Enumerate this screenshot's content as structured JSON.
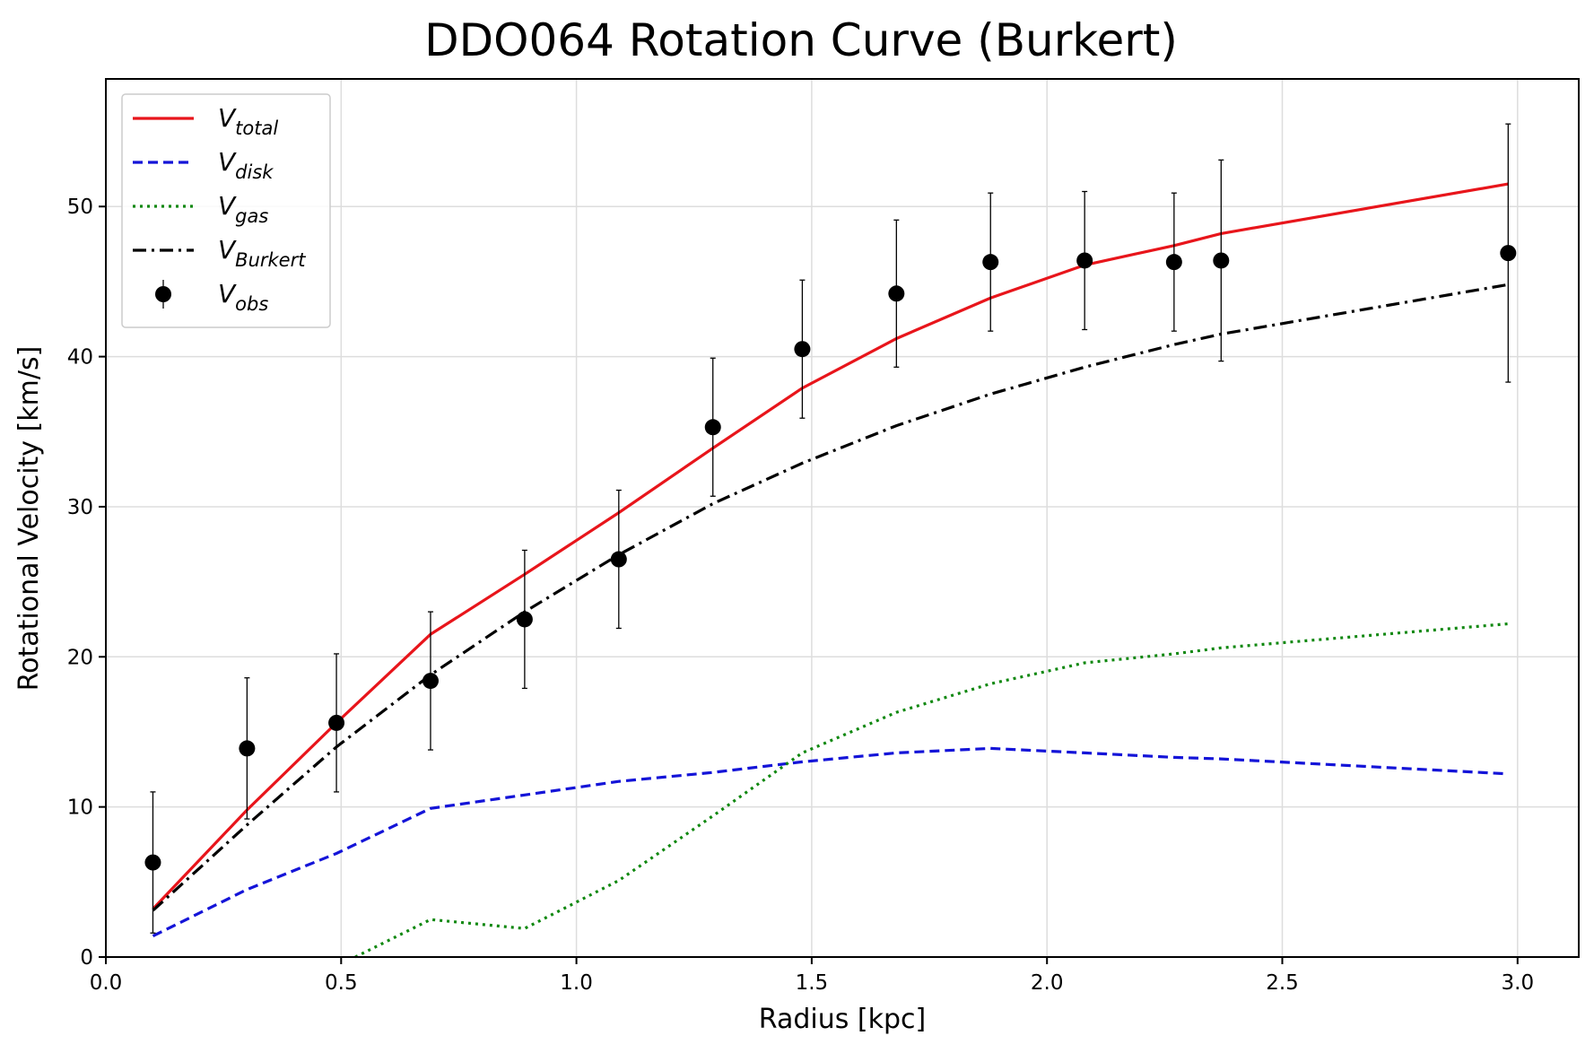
{
  "chart_data": {
    "type": "line",
    "title": "DDO064 Rotation Curve (Burkert)",
    "xlabel": "Radius [kpc]",
    "ylabel": "Rotational Velocity [km/s]",
    "xlim": [
      0.0,
      3.13
    ],
    "ylim": [
      0,
      58.5
    ],
    "xticks": [
      0.0,
      0.5,
      1.0,
      1.5,
      2.0,
      2.5,
      3.0
    ],
    "xtick_labels": [
      "0.0",
      "0.5",
      "1.0",
      "1.5",
      "2.0",
      "2.5",
      "3.0"
    ],
    "yticks": [
      0,
      10,
      20,
      30,
      40,
      50
    ],
    "ytick_labels": [
      "0",
      "10",
      "20",
      "30",
      "40",
      "50"
    ],
    "grid": true,
    "legend_position": "top-left",
    "x": [
      0.1,
      0.3,
      0.49,
      0.69,
      0.89,
      1.09,
      1.29,
      1.48,
      1.68,
      1.88,
      2.08,
      2.27,
      2.37,
      2.98
    ],
    "series": [
      {
        "name": "V",
        "subscript": "total",
        "color": "#e8151b",
        "style": "solid",
        "values": [
          3.2,
          9.8,
          15.6,
          21.5,
          25.5,
          29.6,
          33.9,
          37.9,
          41.2,
          43.9,
          46.1,
          47.4,
          48.2,
          51.5
        ]
      },
      {
        "name": "V",
        "subscript": "disk",
        "color": "#1414d8",
        "style": "dashed",
        "values": [
          1.4,
          4.5,
          6.9,
          9.9,
          10.8,
          11.7,
          12.3,
          13.0,
          13.6,
          13.9,
          13.6,
          13.3,
          13.2,
          12.2
        ]
      },
      {
        "name": "V",
        "subscript": "gas",
        "color": "#108810",
        "style": "dotted",
        "x": [
          0.53,
          0.69,
          0.89,
          1.09,
          1.29,
          1.48,
          1.68,
          1.88,
          2.08,
          2.27,
          2.37,
          2.98
        ],
        "values": [
          0.0,
          2.5,
          1.9,
          5.1,
          9.4,
          13.6,
          16.3,
          18.2,
          19.6,
          20.2,
          20.6,
          22.2
        ]
      },
      {
        "name": "V",
        "subscript": "Burkert",
        "color": "#000000",
        "style": "dashdot",
        "values": [
          3.1,
          8.8,
          14.0,
          18.8,
          23.0,
          26.8,
          30.2,
          32.9,
          35.4,
          37.5,
          39.3,
          40.8,
          41.5,
          44.8
        ]
      }
    ],
    "observations": {
      "name": "V",
      "subscript": "obs",
      "color": "#000000",
      "x": [
        0.1,
        0.3,
        0.49,
        0.69,
        0.89,
        1.09,
        1.29,
        1.48,
        1.68,
        1.88,
        2.08,
        2.27,
        2.37,
        2.98
      ],
      "y": [
        6.3,
        13.9,
        15.6,
        18.4,
        22.5,
        26.5,
        35.3,
        40.5,
        44.2,
        46.3,
        46.4,
        46.3,
        46.4,
        46.9
      ],
      "yerr_low": [
        4.7,
        4.7,
        4.6,
        4.6,
        4.6,
        4.6,
        4.6,
        4.6,
        4.9,
        4.6,
        4.6,
        4.6,
        6.7,
        8.6
      ],
      "yerr_high": [
        4.7,
        4.7,
        4.6,
        4.6,
        4.6,
        4.6,
        4.6,
        4.6,
        4.9,
        4.6,
        4.6,
        4.6,
        6.7,
        8.6
      ]
    }
  }
}
